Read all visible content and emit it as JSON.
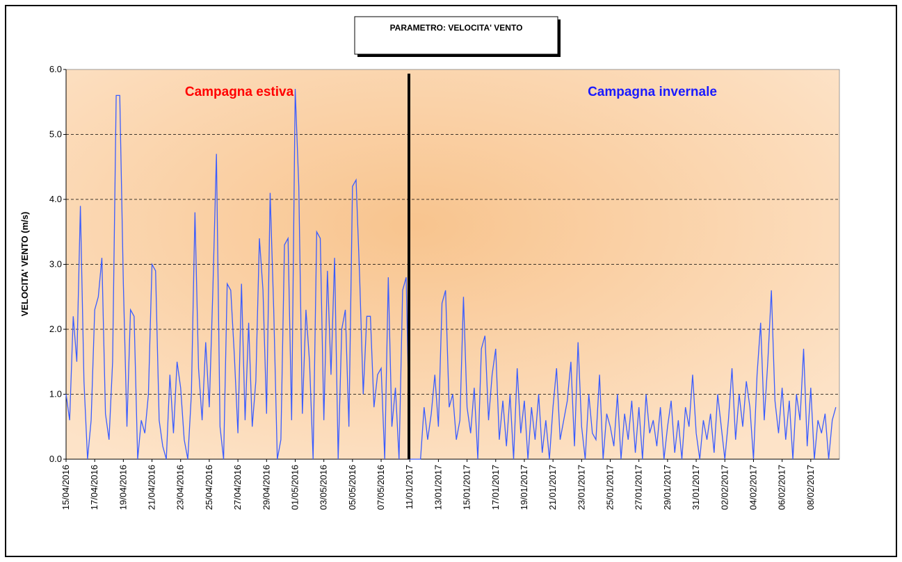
{
  "chart_data": {
    "type": "line",
    "title": "PARAMETRO: VELOCITA' VENTO",
    "y_label": "VELOCITA' VENTO (m/s)",
    "annotations": [
      "Campagna estiva",
      "Campagna invernale"
    ],
    "annotation_colors": [
      "#ff0000",
      "#1a1aff"
    ],
    "color": "#3a5cff",
    "grid": true,
    "ylim": [
      0,
      6
    ],
    "yticks": [
      {
        "value": 0,
        "label": "0.0"
      },
      {
        "value": 1,
        "label": "1.0"
      },
      {
        "value": 2,
        "label": "2.0"
      },
      {
        "value": 3,
        "label": "3.0"
      },
      {
        "value": 4,
        "label": "4.0"
      },
      {
        "value": 5,
        "label": "5.0"
      },
      {
        "value": 6,
        "label": "6.0"
      }
    ],
    "categories": [
      "15/04/2016",
      null,
      null,
      null,
      null,
      null,
      null,
      null,
      "17/04/2016",
      null,
      null,
      null,
      null,
      null,
      null,
      null,
      "19/04/2016",
      null,
      null,
      null,
      null,
      null,
      null,
      null,
      "21/04/2016",
      null,
      null,
      null,
      null,
      null,
      null,
      null,
      "23/04/2016",
      null,
      null,
      null,
      null,
      null,
      null,
      null,
      "25/04/2016",
      null,
      null,
      null,
      null,
      null,
      null,
      null,
      "27/04/2016",
      null,
      null,
      null,
      null,
      null,
      null,
      null,
      "29/04/2016",
      null,
      null,
      null,
      null,
      null,
      null,
      null,
      "01/05/2016",
      null,
      null,
      null,
      null,
      null,
      null,
      null,
      "03/05/2016",
      null,
      null,
      null,
      null,
      null,
      null,
      null,
      "05/05/2016",
      null,
      null,
      null,
      null,
      null,
      null,
      null,
      "07/05/2016",
      null,
      null,
      null,
      null,
      null,
      null,
      null,
      "11/01/2017",
      null,
      null,
      null,
      null,
      null,
      null,
      null,
      "13/01/2017",
      null,
      null,
      null,
      null,
      null,
      null,
      null,
      "15/01/2017",
      null,
      null,
      null,
      null,
      null,
      null,
      null,
      "17/01/2017",
      null,
      null,
      null,
      null,
      null,
      null,
      null,
      "19/01/2017",
      null,
      null,
      null,
      null,
      null,
      null,
      null,
      "21/01/2017",
      null,
      null,
      null,
      null,
      null,
      null,
      null,
      "23/01/2017",
      null,
      null,
      null,
      null,
      null,
      null,
      null,
      "25/01/2017",
      null,
      null,
      null,
      null,
      null,
      null,
      null,
      "27/01/2017",
      null,
      null,
      null,
      null,
      null,
      null,
      null,
      "29/01/2017",
      null,
      null,
      null,
      null,
      null,
      null,
      null,
      "31/01/2017",
      null,
      null,
      null,
      null,
      null,
      null,
      null,
      "02/02/2017",
      null,
      null,
      null,
      null,
      null,
      null,
      null,
      "04/02/2017",
      null,
      null,
      null,
      null,
      null,
      null,
      null,
      "06/02/2017",
      null,
      null,
      null,
      null,
      null,
      null,
      null,
      "08/02/2017",
      null,
      null,
      null,
      null,
      null,
      null,
      null
    ],
    "values": [
      1.0,
      0.6,
      2.2,
      1.5,
      3.9,
      1.2,
      0.0,
      0.6,
      2.3,
      2.5,
      3.1,
      0.7,
      0.3,
      1.5,
      5.6,
      5.6,
      2.7,
      0.5,
      2.3,
      2.2,
      0.0,
      0.6,
      0.4,
      1.0,
      3.0,
      2.9,
      0.6,
      0.2,
      0.0,
      1.3,
      0.4,
      1.5,
      1.1,
      0.3,
      0.0,
      1.0,
      3.8,
      1.4,
      0.6,
      1.8,
      0.8,
      2.6,
      4.7,
      0.5,
      0.0,
      2.7,
      2.6,
      1.6,
      0.4,
      2.7,
      0.6,
      2.1,
      0.5,
      1.2,
      3.4,
      2.6,
      0.7,
      4.1,
      2.3,
      0.0,
      0.3,
      3.3,
      3.4,
      0.6,
      5.7,
      4.2,
      0.7,
      2.3,
      1.5,
      0.0,
      3.5,
      3.4,
      0.6,
      2.9,
      1.3,
      3.1,
      0.0,
      2.0,
      2.3,
      0.5,
      4.2,
      4.3,
      2.8,
      1.0,
      2.2,
      2.2,
      0.8,
      1.3,
      1.4,
      0.0,
      2.8,
      0.5,
      1.1,
      0.0,
      2.6,
      2.8,
      0.0,
      0.0,
      0.0,
      0.0,
      0.8,
      0.3,
      0.7,
      1.3,
      0.5,
      2.4,
      2.6,
      0.8,
      1.0,
      0.3,
      0.6,
      2.5,
      0.8,
      0.4,
      1.1,
      0.0,
      1.7,
      1.9,
      0.6,
      1.3,
      1.7,
      0.3,
      0.9,
      0.2,
      1.0,
      0.0,
      1.4,
      0.4,
      0.9,
      0.0,
      0.8,
      0.3,
      1.0,
      0.1,
      0.6,
      0.0,
      0.8,
      1.4,
      0.3,
      0.6,
      0.9,
      1.5,
      0.2,
      1.8,
      0.5,
      0.0,
      1.0,
      0.4,
      0.3,
      1.3,
      0.0,
      0.7,
      0.5,
      0.2,
      1.0,
      0.0,
      0.7,
      0.3,
      0.9,
      0.1,
      0.8,
      0.0,
      1.0,
      0.4,
      0.6,
      0.2,
      0.8,
      0.0,
      0.5,
      0.9,
      0.1,
      0.6,
      0.0,
      0.8,
      0.5,
      1.3,
      0.4,
      0.0,
      0.6,
      0.3,
      0.7,
      0.1,
      1.0,
      0.5,
      0.0,
      0.6,
      1.4,
      0.3,
      1.0,
      0.5,
      1.2,
      0.8,
      0.0,
      1.3,
      2.1,
      0.6,
      1.5,
      2.6,
      0.9,
      0.4,
      1.1,
      0.3,
      0.9,
      0.0,
      1.0,
      0.6,
      1.7,
      0.2,
      1.1,
      0.0,
      0.6,
      0.4,
      0.7,
      0.0,
      0.6,
      0.8
    ]
  }
}
